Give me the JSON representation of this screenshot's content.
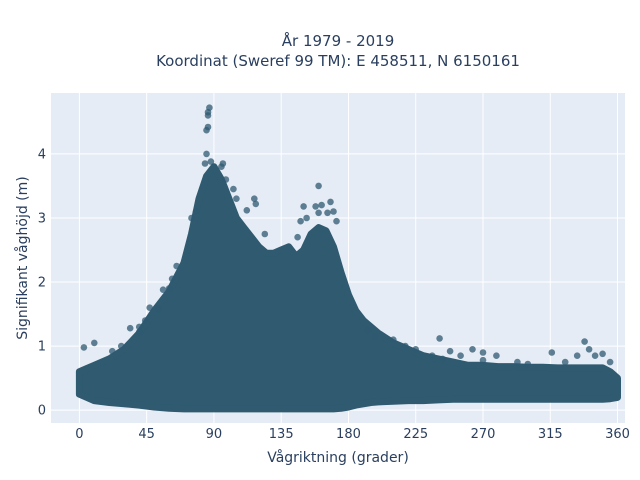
{
  "chart_data": {
    "type": "scatter",
    "title": "År 1979 - 2019",
    "subtitle": "Koordinat (Sweref 99 TM): E 458511, N 6150161",
    "xlabel": "Vågriktning (grader)",
    "ylabel": "Signifikant våghöjd (m)",
    "xlim": [
      -19,
      365
    ],
    "ylim": [
      -0.2,
      4.95
    ],
    "x_ticks": [
      0,
      45,
      90,
      135,
      180,
      225,
      270,
      315,
      360
    ],
    "x_tick_labels": [
      "0",
      "45",
      "90",
      "135",
      "180",
      "225",
      "270",
      "315",
      "360"
    ],
    "y_ticks": [
      0,
      1,
      2,
      3,
      4
    ],
    "y_tick_labels": [
      "0",
      "1",
      "2",
      "3",
      "4"
    ],
    "grid": true,
    "marker_color": "#2f5a70",
    "background_color": "#e5ecf6",
    "envelope": {
      "x": [
        0,
        5,
        10,
        20,
        30,
        40,
        50,
        60,
        70,
        75,
        80,
        85,
        90,
        95,
        100,
        105,
        110,
        115,
        120,
        125,
        130,
        135,
        140,
        145,
        150,
        155,
        160,
        165,
        170,
        175,
        180,
        185,
        190,
        195,
        200,
        210,
        220,
        230,
        240,
        250,
        260,
        270,
        280,
        290,
        300,
        310,
        320,
        330,
        340,
        350,
        355,
        360
      ],
      "upper": [
        0.6,
        0.65,
        0.7,
        0.8,
        0.95,
        1.2,
        1.55,
        1.85,
        2.3,
        2.75,
        3.3,
        3.65,
        3.8,
        3.6,
        3.3,
        3.0,
        2.85,
        2.7,
        2.55,
        2.45,
        2.45,
        2.5,
        2.55,
        2.4,
        2.5,
        2.75,
        2.85,
        2.8,
        2.55,
        2.15,
        1.8,
        1.55,
        1.4,
        1.3,
        1.2,
        1.05,
        0.95,
        0.85,
        0.8,
        0.75,
        0.7,
        0.7,
        0.68,
        0.68,
        0.67,
        0.67,
        0.66,
        0.66,
        0.66,
        0.66,
        0.6,
        0.5
      ],
      "lower": [
        0.25,
        0.2,
        0.15,
        0.12,
        0.1,
        0.08,
        0.05,
        0.03,
        0.02,
        0.02,
        0.02,
        0.02,
        0.02,
        0.02,
        0.02,
        0.02,
        0.02,
        0.02,
        0.02,
        0.02,
        0.02,
        0.02,
        0.02,
        0.02,
        0.02,
        0.02,
        0.02,
        0.02,
        0.02,
        0.03,
        0.05,
        0.08,
        0.1,
        0.12,
        0.13,
        0.14,
        0.15,
        0.15,
        0.16,
        0.17,
        0.17,
        0.17,
        0.17,
        0.17,
        0.17,
        0.17,
        0.17,
        0.17,
        0.17,
        0.17,
        0.18,
        0.2
      ]
    },
    "outlier_points": [
      {
        "x": 86,
        "y": 4.65
      },
      {
        "x": 86,
        "y": 4.6
      },
      {
        "x": 87,
        "y": 4.72
      },
      {
        "x": 86,
        "y": 4.42
      },
      {
        "x": 85,
        "y": 4.37
      },
      {
        "x": 84,
        "y": 3.85
      },
      {
        "x": 85,
        "y": 4.0
      },
      {
        "x": 88,
        "y": 3.88
      },
      {
        "x": 95,
        "y": 3.8
      },
      {
        "x": 96,
        "y": 3.85
      },
      {
        "x": 98,
        "y": 3.6
      },
      {
        "x": 103,
        "y": 3.45
      },
      {
        "x": 105,
        "y": 3.3
      },
      {
        "x": 117,
        "y": 3.3
      },
      {
        "x": 118,
        "y": 3.22
      },
      {
        "x": 112,
        "y": 3.12
      },
      {
        "x": 124,
        "y": 2.75
      },
      {
        "x": 150,
        "y": 3.18
      },
      {
        "x": 152,
        "y": 3.0
      },
      {
        "x": 158,
        "y": 3.18
      },
      {
        "x": 160,
        "y": 3.5
      },
      {
        "x": 162,
        "y": 3.2
      },
      {
        "x": 166,
        "y": 3.08
      },
      {
        "x": 168,
        "y": 3.25
      },
      {
        "x": 170,
        "y": 3.1
      },
      {
        "x": 172,
        "y": 2.95
      },
      {
        "x": 160,
        "y": 3.08
      },
      {
        "x": 148,
        "y": 2.95
      },
      {
        "x": 146,
        "y": 2.7
      },
      {
        "x": 60,
        "y": 1.9
      },
      {
        "x": 56,
        "y": 1.88
      },
      {
        "x": 53,
        "y": 1.58
      },
      {
        "x": 47,
        "y": 1.6
      },
      {
        "x": 40,
        "y": 1.3
      },
      {
        "x": 34,
        "y": 1.28
      },
      {
        "x": 40,
        "y": 1.22
      },
      {
        "x": 44,
        "y": 1.4
      },
      {
        "x": 62,
        "y": 2.05
      },
      {
        "x": 65,
        "y": 2.25
      },
      {
        "x": 75,
        "y": 3.0
      },
      {
        "x": 78,
        "y": 3.1
      },
      {
        "x": 3,
        "y": 0.98
      },
      {
        "x": 10,
        "y": 1.05
      },
      {
        "x": 22,
        "y": 0.92
      },
      {
        "x": 28,
        "y": 1.0
      },
      {
        "x": 210,
        "y": 1.1
      },
      {
        "x": 218,
        "y": 1.0
      },
      {
        "x": 225,
        "y": 0.95
      },
      {
        "x": 236,
        "y": 0.85
      },
      {
        "x": 241,
        "y": 1.12
      },
      {
        "x": 248,
        "y": 0.92
      },
      {
        "x": 255,
        "y": 0.85
      },
      {
        "x": 263,
        "y": 0.95
      },
      {
        "x": 270,
        "y": 0.78
      },
      {
        "x": 279,
        "y": 0.85
      },
      {
        "x": 293,
        "y": 0.75
      },
      {
        "x": 300,
        "y": 0.72
      },
      {
        "x": 316,
        "y": 0.9
      },
      {
        "x": 325,
        "y": 0.75
      },
      {
        "x": 333,
        "y": 0.85
      },
      {
        "x": 338,
        "y": 1.07
      },
      {
        "x": 341,
        "y": 0.95
      },
      {
        "x": 345,
        "y": 0.85
      },
      {
        "x": 350,
        "y": 0.88
      },
      {
        "x": 355,
        "y": 0.75
      },
      {
        "x": 243,
        "y": 0.8
      },
      {
        "x": 270,
        "y": 0.9
      },
      {
        "x": 198,
        "y": 1.15
      },
      {
        "x": 193,
        "y": 1.25
      }
    ]
  }
}
